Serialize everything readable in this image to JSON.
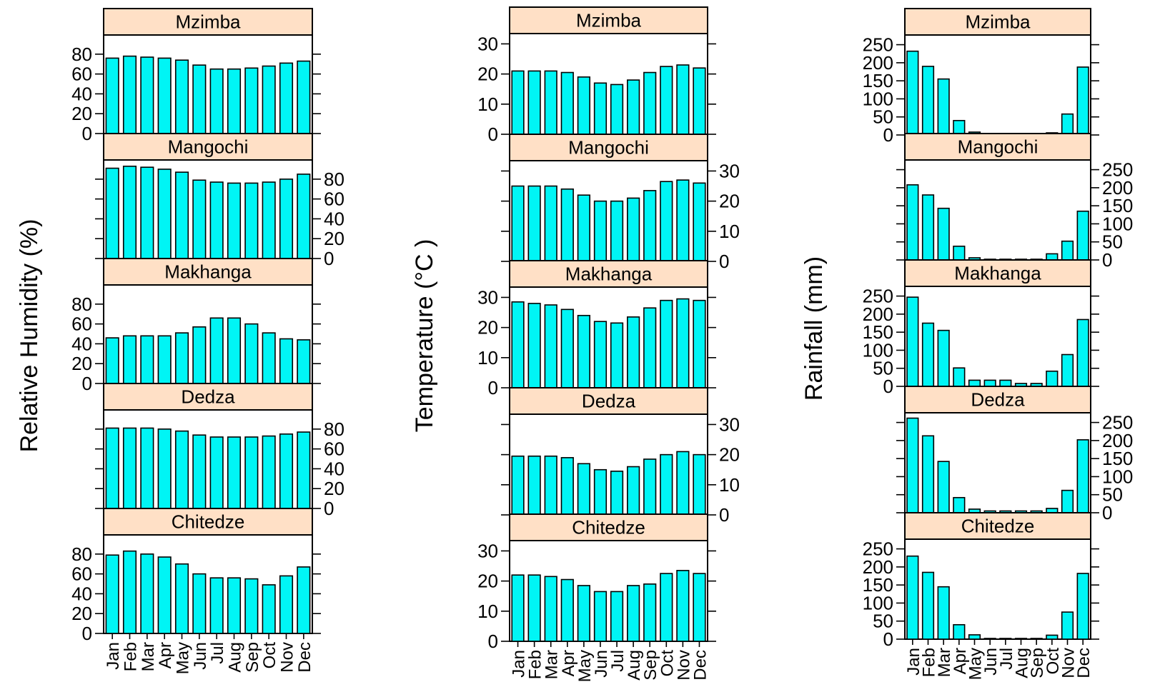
{
  "figure": {
    "months": [
      "Jan",
      "Feb",
      "Mar",
      "Apr",
      "May",
      "Jun",
      "Jul",
      "Aug",
      "Sep",
      "Oct",
      "Nov",
      "Dec"
    ],
    "stations": [
      "Mzimba",
      "Mangochi",
      "Makhanga",
      "Dedza",
      "Chitedze"
    ],
    "colors": {
      "bar_fill": "#00F5F5",
      "bar_stroke": "#000000",
      "strip_fill": "#FFE0C6",
      "strip_stroke": "#000000"
    }
  },
  "chart_data": [
    {
      "type": "bar",
      "ylabel": "Relative Humidity (%)",
      "ylim": [
        0,
        95
      ],
      "yticks": [
        0,
        20,
        40,
        60,
        80
      ],
      "categories": [
        "Jan",
        "Feb",
        "Mar",
        "Apr",
        "May",
        "Jun",
        "Jul",
        "Aug",
        "Sep",
        "Oct",
        "Nov",
        "Dec"
      ],
      "series": [
        {
          "name": "Mzimba",
          "values": [
            76,
            78,
            77,
            76,
            74,
            69,
            65,
            65,
            66,
            68,
            71,
            73
          ]
        },
        {
          "name": "Mangochi",
          "values": [
            91,
            93,
            92,
            90,
            87,
            79,
            77,
            76,
            76,
            77,
            80,
            85
          ]
        },
        {
          "name": "Makhanga",
          "values": [
            46,
            48,
            48,
            48,
            51,
            57,
            66,
            66,
            60,
            51,
            45,
            44
          ]
        },
        {
          "name": "Dedza",
          "values": [
            81,
            81,
            81,
            80,
            78,
            74,
            72,
            72,
            72,
            73,
            75,
            77
          ]
        },
        {
          "name": "Chitedze",
          "values": [
            79,
            83,
            80,
            77,
            70,
            60,
            56,
            56,
            55,
            49,
            58,
            67
          ]
        }
      ]
    },
    {
      "type": "bar",
      "ylabel": "Temperature (°C )",
      "ylim": [
        0,
        32
      ],
      "yticks": [
        0,
        10,
        20,
        30
      ],
      "categories": [
        "Jan",
        "Feb",
        "Mar",
        "Apr",
        "May",
        "Jun",
        "Jul",
        "Aug",
        "Sep",
        "Oct",
        "Nov",
        "Dec"
      ],
      "series": [
        {
          "name": "Mzimba",
          "values": [
            21,
            21,
            21,
            20.5,
            19,
            17,
            16.5,
            18,
            20.5,
            22.5,
            23,
            22
          ]
        },
        {
          "name": "Mangochi",
          "values": [
            25,
            25,
            25,
            24,
            22,
            20,
            20,
            21,
            23.5,
            26.5,
            27,
            26
          ]
        },
        {
          "name": "Makhanga",
          "values": [
            28.5,
            28,
            27.5,
            26,
            24,
            22,
            21.5,
            23.5,
            26.5,
            29,
            29.5,
            29
          ]
        },
        {
          "name": "Dedza",
          "values": [
            19.5,
            19.5,
            19.5,
            19,
            17,
            15,
            14.5,
            16,
            18.5,
            20,
            21,
            20
          ]
        },
        {
          "name": "Chitedze",
          "values": [
            22,
            22,
            21.5,
            20.5,
            18.5,
            16.5,
            16.5,
            18.5,
            19,
            22.5,
            23.5,
            22.5
          ]
        }
      ]
    },
    {
      "type": "bar",
      "ylabel": "Rainfall (mm)",
      "ylim": [
        0,
        265
      ],
      "yticks": [
        0,
        50,
        100,
        150,
        200,
        250
      ],
      "categories": [
        "Jan",
        "Feb",
        "Mar",
        "Apr",
        "May",
        "Jun",
        "Jul",
        "Aug",
        "Sep",
        "Oct",
        "Nov",
        "Dec"
      ],
      "series": [
        {
          "name": "Mzimba",
          "values": [
            232,
            190,
            155,
            40,
            8,
            2,
            2,
            2,
            2,
            6,
            58,
            188
          ]
        },
        {
          "name": "Mangochi",
          "values": [
            208,
            180,
            143,
            38,
            6,
            2,
            2,
            2,
            2,
            17,
            52,
            135
          ]
        },
        {
          "name": "Makhanga",
          "values": [
            247,
            175,
            155,
            51,
            17,
            17,
            17,
            8,
            8,
            42,
            88,
            185
          ]
        },
        {
          "name": "Dedza",
          "values": [
            262,
            213,
            142,
            42,
            10,
            5,
            5,
            5,
            5,
            12,
            62,
            202
          ]
        },
        {
          "name": "Chitedze",
          "values": [
            230,
            185,
            145,
            40,
            12,
            2,
            2,
            2,
            2,
            11,
            75,
            182
          ]
        }
      ]
    }
  ]
}
